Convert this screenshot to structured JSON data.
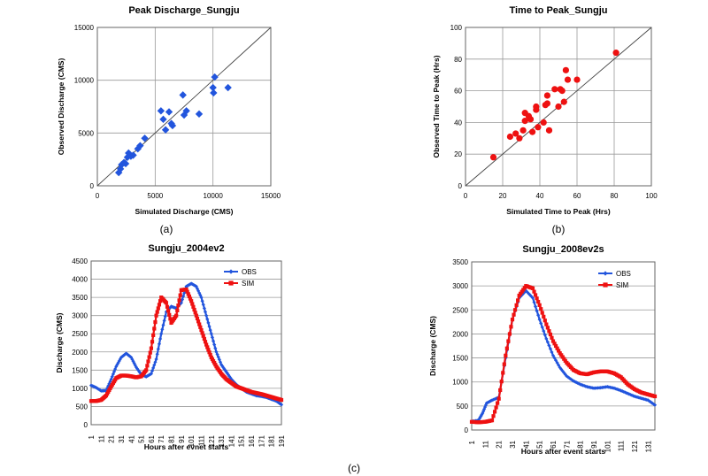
{
  "captions": [
    "(a)",
    "(b)",
    "(c)"
  ],
  "chart_data": [
    {
      "type": "scatter",
      "title": "Peak Discharge_Sungju",
      "xlabel": "Simulated Discharge (CMS)",
      "ylabel": "Observed Discharge (CMS)",
      "xlim": [
        0,
        15000
      ],
      "ylim": [
        0,
        15000
      ],
      "xticks": [
        "0",
        "5000",
        "10000",
        "15000"
      ],
      "yticks": [
        "0",
        "5000",
        "10000",
        "15000"
      ],
      "marker": "diamond",
      "color": "#2255dd",
      "grid": true,
      "reference_line": "1:1",
      "points": [
        [
          1850,
          1250
        ],
        [
          2000,
          1600
        ],
        [
          2100,
          2000
        ],
        [
          2300,
          2200
        ],
        [
          2450,
          2100
        ],
        [
          2600,
          2700
        ],
        [
          2700,
          3100
        ],
        [
          2900,
          2800
        ],
        [
          3100,
          2900
        ],
        [
          3500,
          3500
        ],
        [
          3700,
          3800
        ],
        [
          4100,
          4500
        ],
        [
          5500,
          7100
        ],
        [
          5700,
          6300
        ],
        [
          5900,
          5300
        ],
        [
          6200,
          7000
        ],
        [
          6400,
          5900
        ],
        [
          6500,
          5700
        ],
        [
          7400,
          8600
        ],
        [
          7500,
          6700
        ],
        [
          7700,
          7100
        ],
        [
          8800,
          6800
        ],
        [
          10000,
          9300
        ],
        [
          10050,
          8800
        ],
        [
          10150,
          10300
        ],
        [
          11300,
          9300
        ]
      ]
    },
    {
      "type": "scatter",
      "title": "Time to Peak_Sungju",
      "xlabel": "Simulated Time to Peak (Hrs)",
      "ylabel": "Observed Time to Peak (Hrs)",
      "xlim": [
        0,
        100
      ],
      "ylim": [
        0,
        100
      ],
      "xticks": [
        "0",
        "20",
        "40",
        "60",
        "80",
        "100"
      ],
      "yticks": [
        "0",
        "20",
        "40",
        "60",
        "80",
        "100"
      ],
      "marker": "circle",
      "color": "#ee1111",
      "grid": true,
      "reference_line": "1:1",
      "points": [
        [
          15,
          18
        ],
        [
          24,
          31
        ],
        [
          27,
          33
        ],
        [
          29,
          30
        ],
        [
          31,
          35
        ],
        [
          32,
          41
        ],
        [
          32,
          46
        ],
        [
          34,
          44
        ],
        [
          35,
          42
        ],
        [
          36,
          34
        ],
        [
          38,
          48
        ],
        [
          38,
          50
        ],
        [
          39,
          37
        ],
        [
          42,
          40
        ],
        [
          43,
          51
        ],
        [
          44,
          52
        ],
        [
          44,
          57
        ],
        [
          45,
          35
        ],
        [
          48,
          61
        ],
        [
          50,
          50
        ],
        [
          51,
          61
        ],
        [
          52,
          60
        ],
        [
          53,
          53
        ],
        [
          54,
          73
        ],
        [
          55,
          67
        ],
        [
          60,
          67
        ],
        [
          81,
          84
        ]
      ]
    },
    {
      "type": "line",
      "title": "Sungju_2004ev2",
      "xlabel": "Hours after evnet starts",
      "ylabel": "Discharge (CMS)",
      "xlim": [
        1,
        191
      ],
      "ylim": [
        0,
        4500
      ],
      "xticks": [
        "1",
        "11",
        "21",
        "31",
        "41",
        "51",
        "61",
        "71",
        "81",
        "91",
        "101",
        "111",
        "121",
        "131",
        "141",
        "151",
        "161",
        "171",
        "181",
        "191"
      ],
      "yticks": [
        "0",
        "500",
        "1000",
        "1500",
        "2000",
        "2500",
        "3000",
        "3500",
        "4000",
        "4500"
      ],
      "legend": "top-right",
      "series": [
        {
          "name": "OBS",
          "color": "#2255dd",
          "marker": "diamond",
          "points": [
            [
              1,
              1080
            ],
            [
              6,
              1020
            ],
            [
              11,
              930
            ],
            [
              16,
              940
            ],
            [
              21,
              1250
            ],
            [
              26,
              1600
            ],
            [
              31,
              1850
            ],
            [
              36,
              1960
            ],
            [
              41,
              1850
            ],
            [
              46,
              1580
            ],
            [
              51,
              1380
            ],
            [
              56,
              1320
            ],
            [
              61,
              1400
            ],
            [
              66,
              1800
            ],
            [
              71,
              2500
            ],
            [
              76,
              3100
            ],
            [
              81,
              3250
            ],
            [
              86,
              3200
            ],
            [
              91,
              3350
            ],
            [
              96,
              3800
            ],
            [
              101,
              3880
            ],
            [
              106,
              3800
            ],
            [
              111,
              3500
            ],
            [
              116,
              3000
            ],
            [
              121,
              2500
            ],
            [
              126,
              2000
            ],
            [
              131,
              1650
            ],
            [
              136,
              1450
            ],
            [
              141,
              1250
            ],
            [
              146,
              1100
            ],
            [
              151,
              1000
            ],
            [
              156,
              900
            ],
            [
              161,
              850
            ],
            [
              166,
              800
            ],
            [
              171,
              780
            ],
            [
              176,
              750
            ],
            [
              181,
              700
            ],
            [
              186,
              650
            ],
            [
              191,
              550
            ]
          ]
        },
        {
          "name": "SIM",
          "color": "#ee1111",
          "marker": "square",
          "points": [
            [
              1,
              650
            ],
            [
              6,
              650
            ],
            [
              11,
              680
            ],
            [
              16,
              800
            ],
            [
              21,
              1050
            ],
            [
              26,
              1280
            ],
            [
              31,
              1350
            ],
            [
              36,
              1350
            ],
            [
              41,
              1330
            ],
            [
              46,
              1300
            ],
            [
              51,
              1330
            ],
            [
              56,
              1500
            ],
            [
              61,
              2100
            ],
            [
              66,
              3000
            ],
            [
              71,
              3500
            ],
            [
              76,
              3350
            ],
            [
              81,
              2800
            ],
            [
              86,
              3000
            ],
            [
              91,
              3700
            ],
            [
              96,
              3720
            ],
            [
              101,
              3400
            ],
            [
              106,
              3000
            ],
            [
              111,
              2600
            ],
            [
              116,
              2200
            ],
            [
              121,
              1850
            ],
            [
              126,
              1600
            ],
            [
              131,
              1400
            ],
            [
              136,
              1250
            ],
            [
              141,
              1150
            ],
            [
              146,
              1050
            ],
            [
              151,
              1000
            ],
            [
              156,
              950
            ],
            [
              161,
              900
            ],
            [
              166,
              870
            ],
            [
              171,
              840
            ],
            [
              176,
              800
            ],
            [
              181,
              760
            ],
            [
              186,
              720
            ],
            [
              191,
              680
            ]
          ]
        }
      ]
    },
    {
      "type": "line",
      "title": "Sungju_2008ev2s",
      "xlabel": "Hours after event starts",
      "ylabel": "Discharge (CMS)",
      "xlim": [
        1,
        136
      ],
      "ylim": [
        0,
        3500
      ],
      "xticks": [
        "1",
        "11",
        "21",
        "31",
        "41",
        "51",
        "61",
        "71",
        "81",
        "91",
        "101",
        "111",
        "121",
        "131"
      ],
      "yticks": [
        "0",
        "500",
        "1000",
        "1500",
        "2000",
        "2500",
        "3000",
        "3500"
      ],
      "legend": "top-right",
      "series": [
        {
          "name": "OBS",
          "color": "#2255dd",
          "marker": "diamond",
          "points": [
            [
              1,
              180
            ],
            [
              6,
              200
            ],
            [
              9,
              350
            ],
            [
              12,
              560
            ],
            [
              16,
              620
            ],
            [
              21,
              680
            ],
            [
              26,
              1500
            ],
            [
              31,
              2300
            ],
            [
              36,
              2750
            ],
            [
              41,
              2900
            ],
            [
              46,
              2750
            ],
            [
              51,
              2300
            ],
            [
              56,
              1900
            ],
            [
              61,
              1550
            ],
            [
              66,
              1300
            ],
            [
              71,
              1120
            ],
            [
              76,
              1020
            ],
            [
              81,
              950
            ],
            [
              86,
              900
            ],
            [
              91,
              870
            ],
            [
              96,
              880
            ],
            [
              101,
              900
            ],
            [
              106,
              870
            ],
            [
              111,
              820
            ],
            [
              116,
              760
            ],
            [
              121,
              700
            ],
            [
              126,
              660
            ],
            [
              131,
              620
            ],
            [
              136,
              520
            ]
          ]
        },
        {
          "name": "SIM",
          "color": "#ee1111",
          "marker": "square",
          "points": [
            [
              1,
              170
            ],
            [
              6,
              160
            ],
            [
              11,
              170
            ],
            [
              16,
              200
            ],
            [
              21,
              650
            ],
            [
              26,
              1550
            ],
            [
              31,
              2300
            ],
            [
              36,
              2800
            ],
            [
              41,
              3000
            ],
            [
              46,
              2950
            ],
            [
              51,
              2600
            ],
            [
              56,
              2200
            ],
            [
              61,
              1850
            ],
            [
              66,
              1600
            ],
            [
              71,
              1400
            ],
            [
              76,
              1250
            ],
            [
              81,
              1180
            ],
            [
              86,
              1160
            ],
            [
              91,
              1200
            ],
            [
              96,
              1220
            ],
            [
              101,
              1220
            ],
            [
              106,
              1180
            ],
            [
              111,
              1100
            ],
            [
              116,
              950
            ],
            [
              121,
              850
            ],
            [
              126,
              780
            ],
            [
              131,
              740
            ],
            [
              136,
              700
            ]
          ]
        }
      ]
    }
  ]
}
